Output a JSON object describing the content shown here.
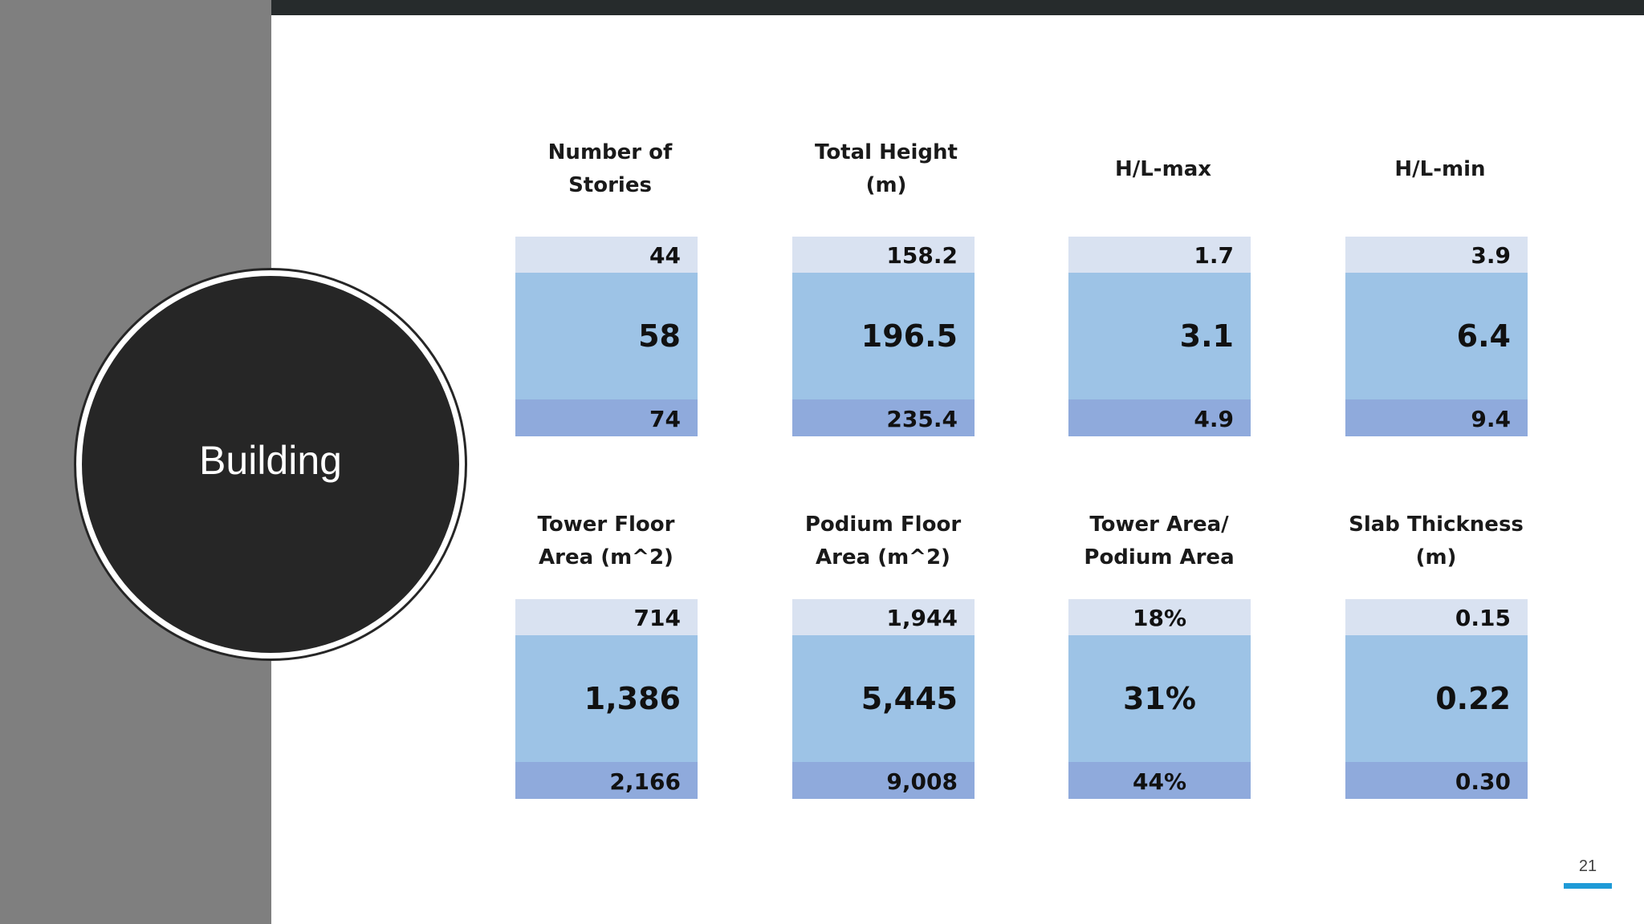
{
  "slide": {
    "title": "Building",
    "page_number": "21",
    "accent_color": "#1f9bd7"
  },
  "metrics": [
    {
      "label_line1": "Number of",
      "label_line2": "Stories",
      "top": "44",
      "middle": "58",
      "bottom": "74"
    },
    {
      "label_line1": "Total Height",
      "label_line2": "(m)",
      "top": "158.2",
      "middle": "196.5",
      "bottom": "235.4"
    },
    {
      "label_line1": "H/L-max",
      "label_line2": "",
      "top": "1.7",
      "middle": "3.1",
      "bottom": "4.9"
    },
    {
      "label_line1": "H/L-min",
      "label_line2": "",
      "top": "3.9",
      "middle": "6.4",
      "bottom": "9.4"
    },
    {
      "label_line1": "Tower Floor",
      "label_line2": "Area (m^2)",
      "top": "714",
      "middle": "1,386",
      "bottom": "2,166"
    },
    {
      "label_line1": "Podium Floor",
      "label_line2": "Area (m^2)",
      "top": "1,944",
      "middle": "5,445",
      "bottom": "9,008"
    },
    {
      "label_line1": "Tower Area/",
      "label_line2": "Podium Area",
      "top": "18%",
      "middle": "31%",
      "bottom": "44%"
    },
    {
      "label_line1": "Slab Thickness",
      "label_line2": "(m)",
      "top": "0.15",
      "middle": "0.22",
      "bottom": "0.30"
    }
  ]
}
